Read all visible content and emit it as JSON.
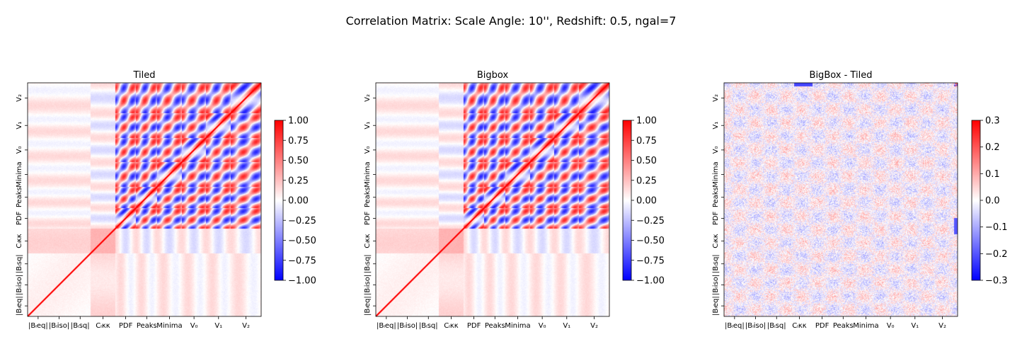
{
  "figure": {
    "suptitle": "Correlation Matrix: Scale Angle: 10'', Redshift: 0.5, ngal=7"
  },
  "chart_data": [
    {
      "type": "heatmap",
      "title": "Tiled",
      "colormap": "bwr",
      "vmin": -1.0,
      "vmax": 1.0,
      "colorbar_ticks": [
        "1.00",
        "0.75",
        "0.50",
        "0.25",
        "0.00",
        "−0.25",
        "−0.50",
        "−0.75",
        "−1.00"
      ],
      "statistics": [
        "|Bₗeq|",
        "|Bₗiso|",
        "|Bₗsq|",
        "Cₗκκ",
        "PDF",
        "Peaks",
        "Minima",
        "V₀",
        "V₁",
        "V₂"
      ],
      "x_tick_labels": [
        "|Bₗeq|",
        "|Bₗiso|",
        "|Bₗsq|",
        "Cₗκκ",
        "PDF",
        "Peaks",
        "Minima",
        "V₀",
        "V₁",
        "V₂"
      ],
      "y_tick_labels": [
        "|Bₗeq|",
        "|Bₗiso|",
        "|Bₗsq|",
        "Cₗκκ",
        "PDF",
        "Peaks",
        "Minima",
        "V₀",
        "V₁",
        "V₂"
      ],
      "diagonal_value": 1.0,
      "grid": false
    },
    {
      "type": "heatmap",
      "title": "Bigbox",
      "colormap": "bwr",
      "vmin": -1.0,
      "vmax": 1.0,
      "colorbar_ticks": [
        "1.00",
        "0.75",
        "0.50",
        "0.25",
        "0.00",
        "−0.25",
        "−0.50",
        "−0.75",
        "−1.00"
      ],
      "statistics": [
        "|Bₗeq|",
        "|Bₗiso|",
        "|Bₗsq|",
        "Cₗκκ",
        "PDF",
        "Peaks",
        "Minima",
        "V₀",
        "V₁",
        "V₂"
      ],
      "x_tick_labels": [
        "|Bₗeq|",
        "|Bₗiso|",
        "|Bₗsq|",
        "Cₗκκ",
        "PDF",
        "Peaks",
        "Minima",
        "V₀",
        "V₁",
        "V₂"
      ],
      "y_tick_labels": [
        "|Bₗeq|",
        "|Bₗiso|",
        "|Bₗsq|",
        "Cₗκκ",
        "PDF",
        "Peaks",
        "Minima",
        "V₀",
        "V₁",
        "V₂"
      ],
      "diagonal_value": 1.0,
      "grid": false
    },
    {
      "type": "heatmap",
      "title": "BigBox - Tiled",
      "colormap": "bwr",
      "vmin": -0.3,
      "vmax": 0.3,
      "colorbar_ticks": [
        "0.3",
        "0.2",
        "0.1",
        "0.0",
        "−0.1",
        "−0.2",
        "−0.3"
      ],
      "statistics": [
        "|Bₗeq|",
        "|Bₗiso|",
        "|Bₗsq|",
        "Cₗκκ",
        "PDF",
        "Peaks",
        "Minima",
        "V₀",
        "V₁",
        "V₂"
      ],
      "x_tick_labels": [
        "|Bₗeq|",
        "|Bₗiso|",
        "|Bₗsq|",
        "Cₗκκ",
        "PDF",
        "Peaks",
        "Minima",
        "V₀",
        "V₁",
        "V₂"
      ],
      "y_tick_labels": [
        "|Bₗeq|",
        "|Bₗiso|",
        "|Bₗsq|",
        "Cₗκκ",
        "PDF",
        "Peaks",
        "Minima",
        "V₀",
        "V₁",
        "V₂"
      ],
      "diagonal_value": 0.0,
      "grid": false
    }
  ]
}
